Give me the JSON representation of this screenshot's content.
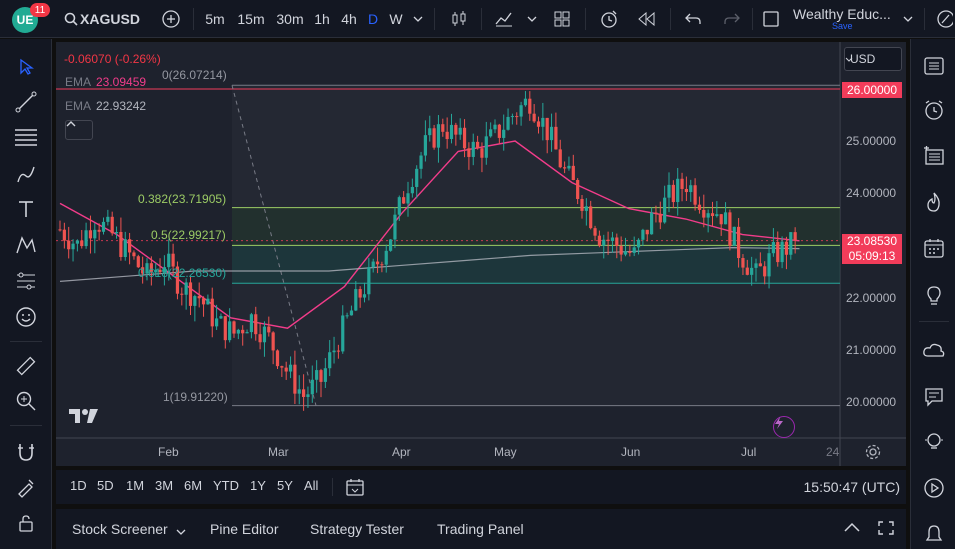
{
  "toolbar": {
    "badge_count": "11",
    "avatar_initials": "UE",
    "symbol": "XAGUSD",
    "intervals": [
      "5m",
      "15m",
      "30m",
      "1h",
      "4h",
      "D",
      "W"
    ],
    "active_interval": "D",
    "layout_name": "Wealthy Educ...",
    "layout_save": "Save"
  },
  "legend": {
    "change": "-0.06070 (-0.26%)",
    "ema1_label": "EMA",
    "ema1_value": "23.09459",
    "ema2_label": "EMA",
    "ema2_value": "22.93242"
  },
  "currency": "USD",
  "fib_labels": {
    "l0": "0(26.07214)",
    "l382": "0.382(23.71905)",
    "l5": "0.5(22.99217)",
    "l618": "0.618(22.26530)",
    "l1": "1(19.91220)"
  },
  "price_axis": {
    "ticks": [
      "25.00000",
      "24.00000",
      "22.00000",
      "21.00000",
      "20.00000"
    ],
    "marker_top": "26.00000",
    "last_price": "23.08530",
    "countdown": "05:09:13"
  },
  "time_axis": [
    "Feb",
    "Mar",
    "Apr",
    "May",
    "Jun",
    "Jul",
    "24"
  ],
  "range_buttons": [
    "1D",
    "5D",
    "1M",
    "3M",
    "6M",
    "YTD",
    "1Y",
    "5Y",
    "All"
  ],
  "clock": "15:50:47 (UTC)",
  "panel_tabs": [
    "Stock Screener",
    "Pine Editor",
    "Strategy Tester",
    "Trading Panel"
  ],
  "colors": {
    "up": "#26a69a",
    "down": "#ef5350",
    "ema_fast": "#f23c8a",
    "ema_slow": "#b2b5be",
    "fib_line": "#9ccc65",
    "accent": "#2962ff"
  },
  "chart_data": {
    "type": "candlestick",
    "symbol": "XAGUSD",
    "ylim": [
      19.5,
      26.5
    ],
    "x_labels": [
      "Feb",
      "Mar",
      "Apr",
      "May",
      "Jun",
      "Jul",
      "24"
    ],
    "fib_levels": [
      {
        "ratio": "0",
        "price": 26.07214
      },
      {
        "ratio": "0.382",
        "price": 23.71905
      },
      {
        "ratio": "0.5",
        "price": 22.99217
      },
      {
        "ratio": "0.618",
        "price": 22.2653
      },
      {
        "ratio": "1",
        "price": 19.9122
      }
    ],
    "close_path": [
      [
        0,
        23.3
      ],
      [
        4,
        23.0
      ],
      [
        8,
        23.5
      ],
      [
        12,
        23.2
      ],
      [
        16,
        22.8
      ],
      [
        20,
        22.4
      ],
      [
        24,
        22.7
      ],
      [
        28,
        22.2
      ],
      [
        32,
        22.0
      ],
      [
        36,
        21.5
      ],
      [
        40,
        21.3
      ],
      [
        44,
        21.6
      ],
      [
        48,
        21.2
      ],
      [
        52,
        20.6
      ],
      [
        56,
        20.1
      ],
      [
        60,
        20.4
      ],
      [
        64,
        21.2
      ],
      [
        68,
        21.9
      ],
      [
        72,
        22.5
      ],
      [
        76,
        23.2
      ],
      [
        80,
        24.2
      ],
      [
        84,
        24.9
      ],
      [
        88,
        25.3
      ],
      [
        92,
        25.0
      ],
      [
        96,
        24.8
      ],
      [
        100,
        25.1
      ],
      [
        104,
        25.5
      ],
      [
        108,
        25.8
      ],
      [
        112,
        25.2
      ],
      [
        116,
        24.4
      ],
      [
        120,
        23.9
      ],
      [
        124,
        23.2
      ],
      [
        128,
        23.0
      ],
      [
        132,
        22.8
      ],
      [
        136,
        23.5
      ],
      [
        140,
        23.9
      ],
      [
        144,
        24.2
      ],
      [
        148,
        23.8
      ],
      [
        152,
        23.6
      ],
      [
        156,
        22.9
      ],
      [
        160,
        22.4
      ],
      [
        164,
        22.8
      ],
      [
        168,
        23.0
      ],
      [
        172,
        23.1
      ]
    ],
    "ema_fast": [
      23.8,
      23.2,
      22.4,
      21.6,
      21.4,
      22.2,
      23.6,
      24.8,
      25.0,
      24.2,
      23.7,
      23.5,
      23.2,
      23.08
    ],
    "ema_slow": [
      22.3,
      22.4,
      22.5,
      22.5,
      22.5,
      22.6,
      22.7,
      22.8,
      22.85,
      22.9,
      22.95,
      22.93
    ],
    "last_close": 23.0853
  }
}
